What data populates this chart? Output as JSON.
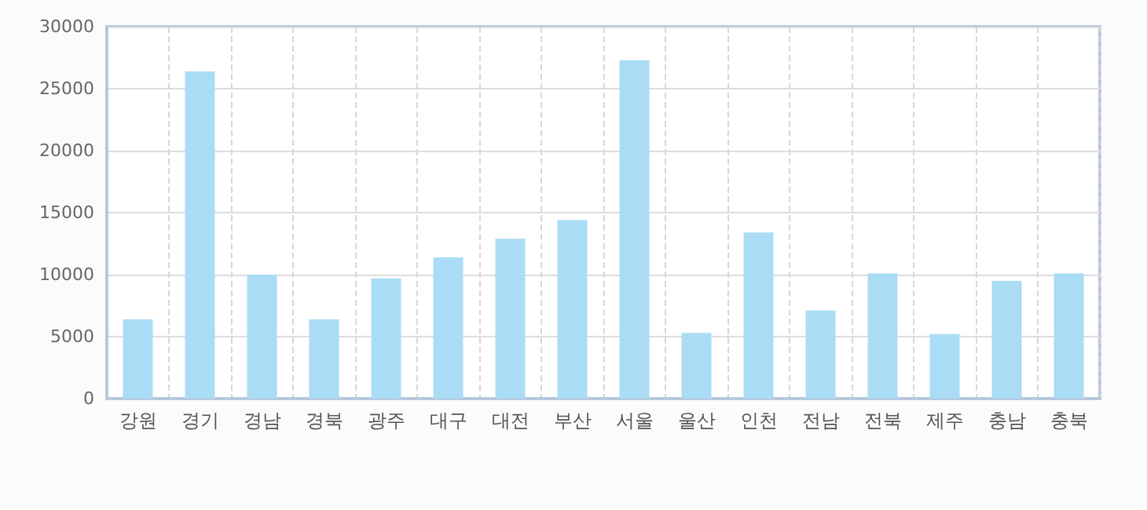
{
  "chart_data": {
    "type": "bar",
    "categories": [
      "강원",
      "경기",
      "경남",
      "경북",
      "광주",
      "대구",
      "대전",
      "부산",
      "서울",
      "울산",
      "인천",
      "전남",
      "전북",
      "제주",
      "충남",
      "충북"
    ],
    "series": [
      {
        "color": "#aadcf5",
        "values": [
          6400,
          26400,
          10000,
          6400,
          9700,
          11400,
          12900,
          14400,
          27300,
          5300,
          13400,
          7100,
          10100,
          5200,
          9500,
          10100
        ]
      }
    ],
    "ylim": [
      0,
      30000
    ],
    "yticks": [
      0,
      5000,
      10000,
      15000,
      20000,
      25000,
      30000
    ],
    "grid": true
  }
}
